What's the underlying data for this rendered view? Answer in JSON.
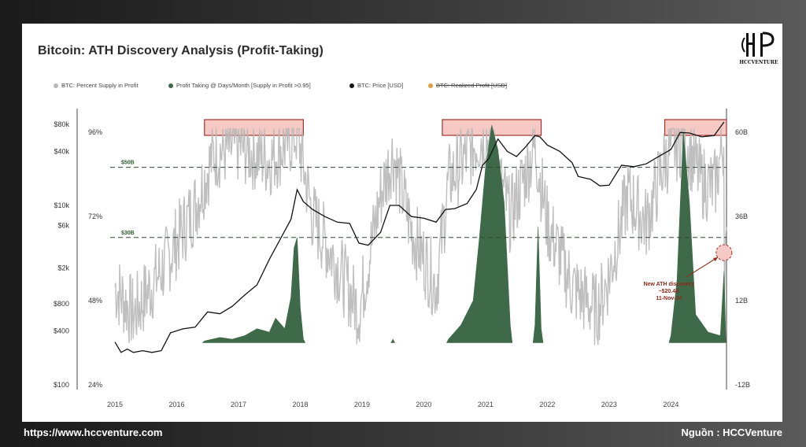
{
  "title": "Bitcoin: ATH Discovery Analysis (Profit-Taking)",
  "logo": {
    "text": "HCCVENTURE"
  },
  "footer": {
    "website": "https://www.hccventure.com",
    "source": "Nguồn : HCCVenture"
  },
  "colors": {
    "supply": "#b8b8b8",
    "profit": "#3f6a4a",
    "price": "#111111",
    "realized": "#e0a040",
    "highlight_fill": "#f6c9c4",
    "highlight_stroke": "#a3322a",
    "ref_line": "#2f4a2f",
    "annot": "#8b2d1a"
  },
  "legend": [
    {
      "label": "BTC: Percent Supply in Profit",
      "color": "#b8b8b8",
      "struck": false
    },
    {
      "label": "Profit Taking @ Days/Month [Supply in Profit >0.95]",
      "color": "#3f6a4a",
      "struck": false
    },
    {
      "label": "BTC: Price [USD]",
      "color": "#111111",
      "struck": false
    },
    {
      "label": "BTC: Realized Profit [USD]",
      "color": "#e0a040",
      "struck": true
    }
  ],
  "chart_data": {
    "type": "line",
    "xlabel": "",
    "ylabel": "",
    "x_ticks": [
      "2015",
      "2016",
      "2017",
      "2018",
      "2019",
      "2020",
      "2021",
      "2022",
      "2023",
      "2024"
    ],
    "x_range": [
      2015.0,
      2024.9
    ],
    "price_axis": {
      "ticks": [
        "$80k",
        "$40k",
        "$10k",
        "$6k",
        "$2k",
        "$800",
        "$400",
        "$100"
      ],
      "values": [
        80000,
        40000,
        10000,
        6000,
        2000,
        800,
        400,
        100
      ],
      "scale": "log"
    },
    "supply_axis": {
      "ticks": [
        "96%",
        "72%",
        "48%",
        "24%"
      ],
      "values": [
        96,
        72,
        48,
        24
      ]
    },
    "profit_axis": {
      "ticks": [
        "60B",
        "36B",
        "12B",
        "-12B"
      ],
      "values": [
        60,
        36,
        12,
        -12
      ]
    },
    "reference_lines": [
      {
        "label": "$50B",
        "value": 50
      },
      {
        "label": "$30B",
        "value": 30
      }
    ],
    "highlight_periods": [
      {
        "x0": 2016.45,
        "x1": 2018.05
      },
      {
        "x0": 2020.3,
        "x1": 2021.9
      },
      {
        "x0": 2023.9,
        "x1": 2024.9
      }
    ],
    "annotation": {
      "lines": [
        "New ATH discovery",
        "~$20.4B",
        "11-Nov-24"
      ],
      "x": 2024.86,
      "value": 20.4
    },
    "series": [
      {
        "name": "BTC: Price [USD]",
        "x": [
          2015.0,
          2015.1,
          2015.2,
          2015.3,
          2015.45,
          2015.6,
          2015.75,
          2015.9,
          2016.1,
          2016.3,
          2016.5,
          2016.7,
          2016.9,
          2017.1,
          2017.3,
          2017.5,
          2017.7,
          2017.85,
          2017.95,
          2018.05,
          2018.2,
          2018.4,
          2018.6,
          2018.8,
          2018.95,
          2019.1,
          2019.3,
          2019.45,
          2019.6,
          2019.8,
          2020.0,
          2020.2,
          2020.35,
          2020.5,
          2020.7,
          2020.85,
          2020.95,
          2021.05,
          2021.2,
          2021.35,
          2021.5,
          2021.65,
          2021.8,
          2021.88,
          2022.0,
          2022.2,
          2022.4,
          2022.5,
          2022.7,
          2022.85,
          2023.0,
          2023.2,
          2023.4,
          2023.6,
          2023.8,
          2024.0,
          2024.15,
          2024.3,
          2024.5,
          2024.7,
          2024.86
        ],
        "values": [
          300,
          230,
          250,
          230,
          240,
          230,
          240,
          380,
          420,
          440,
          650,
          620,
          750,
          1000,
          1300,
          2500,
          4500,
          7000,
          15000,
          11000,
          9000,
          7500,
          6500,
          6300,
          3800,
          3600,
          5000,
          10000,
          10000,
          7500,
          7200,
          6500,
          9000,
          9200,
          10500,
          15000,
          28000,
          33000,
          55000,
          40000,
          35000,
          45000,
          60000,
          58000,
          47000,
          40000,
          30000,
          21000,
          19500,
          16500,
          16800,
          28000,
          27000,
          29000,
          35000,
          42000,
          65000,
          64000,
          58000,
          60000,
          85000
        ]
      },
      {
        "name": "Profit Taking @ Days/Month [Supply in Profit >0.95]",
        "x": [
          2016.45,
          2016.7,
          2016.9,
          2017.1,
          2017.3,
          2017.5,
          2017.6,
          2017.75,
          2017.85,
          2017.9,
          2017.95,
          2018.0,
          2018.05,
          2019.5,
          2020.4,
          2020.6,
          2020.8,
          2020.9,
          2021.0,
          2021.1,
          2021.2,
          2021.3,
          2021.4,
          2021.8,
          2021.85,
          2021.9,
          2024.0,
          2024.1,
          2024.2,
          2024.3,
          2024.4,
          2024.6,
          2024.8,
          2024.86
        ],
        "values": [
          0.5,
          1.5,
          1,
          2,
          4,
          3,
          7,
          4,
          13,
          27,
          30,
          10,
          1,
          1,
          1,
          5,
          12,
          30,
          50,
          62,
          55,
          40,
          5,
          5,
          33,
          4,
          2,
          18,
          60,
          40,
          8,
          3,
          2,
          20.4
        ]
      }
    ]
  }
}
